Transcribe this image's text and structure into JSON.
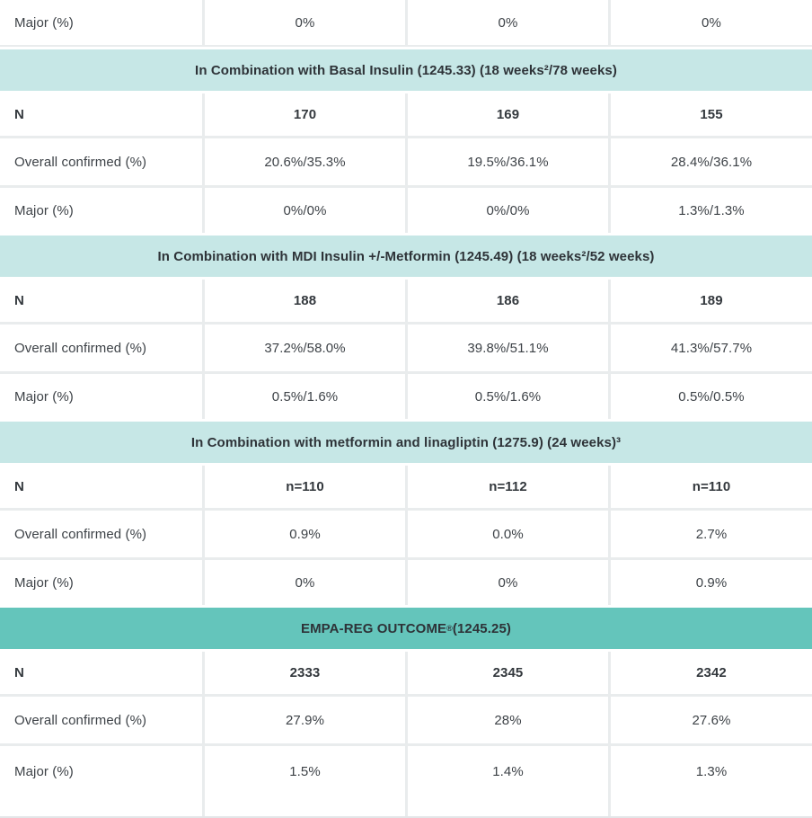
{
  "colors": {
    "light_header_bg": "#c6e7e6",
    "dark_header_bg": "#64c5bb",
    "grid_line": "#e9eced",
    "text": "#3d4247"
  },
  "table": {
    "top_row": {
      "label": "Major (%)",
      "values": [
        "0%",
        "0%",
        "0%"
      ]
    },
    "sections": [
      {
        "header": "In Combination with Basal Insulin (1245.33) (18 weeks²/78 weeks)",
        "style": "light",
        "rows": [
          {
            "label": "N",
            "values": [
              "170",
              "169",
              "155"
            ]
          },
          {
            "label": "Overall confirmed (%)",
            "values": [
              "20.6%/35.3%",
              "19.5%/36.1%",
              "28.4%/36.1%"
            ]
          },
          {
            "label": "Major (%)",
            "values": [
              "0%/0%",
              "0%/0%",
              "1.3%/1.3%"
            ]
          }
        ]
      },
      {
        "header": "In Combination with MDI Insulin +/-Metformin (1245.49) (18 weeks²/52 weeks)",
        "style": "light",
        "rows": [
          {
            "label": "N",
            "values": [
              "188",
              "186",
              "189"
            ]
          },
          {
            "label": "Overall confirmed (%)",
            "values": [
              "37.2%/58.0%",
              "39.8%/51.1%",
              "41.3%/57.7%"
            ]
          },
          {
            "label": "Major (%)",
            "values": [
              "0.5%/1.6%",
              "0.5%/1.6%",
              "0.5%/0.5%"
            ]
          }
        ]
      },
      {
        "header": "In Combination with metformin and linagliptin (1275.9) (24 weeks)³",
        "style": "light",
        "rows": [
          {
            "label": "N",
            "values": [
              "n=110",
              "n=112",
              "n=110"
            ]
          },
          {
            "label": "Overall confirmed (%)",
            "values": [
              "0.9%",
              "0.0%",
              "2.7%"
            ]
          },
          {
            "label": "Major (%)",
            "values": [
              "0%",
              "0%",
              "0.9%"
            ]
          }
        ]
      },
      {
        "header_before": "EMPA-REG OUTCOME",
        "header_sup": "®",
        "header_after": " (1245.25)",
        "style": "dark",
        "rows": [
          {
            "label": "N",
            "values": [
              "2333",
              "2345",
              "2342"
            ]
          },
          {
            "label": "Overall confirmed (%)",
            "values": [
              "27.9%",
              "28%",
              "27.6%"
            ]
          },
          {
            "label": "Major (%)",
            "values": [
              "1.5%",
              "1.4%",
              "1.3%"
            ]
          }
        ]
      }
    ]
  }
}
